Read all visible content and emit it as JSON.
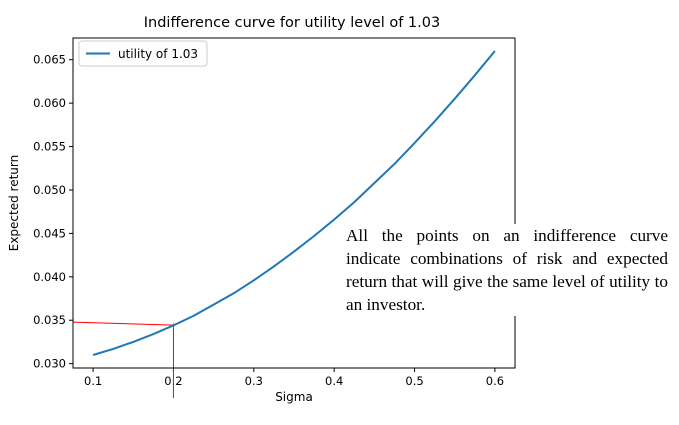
{
  "chart_data": {
    "type": "line",
    "title": "Indifference curve for utility level of 1.03",
    "xlabel": "Sigma",
    "ylabel": "Expected return",
    "xlim": [
      0.075,
      0.625
    ],
    "ylim": [
      0.0295,
      0.0675
    ],
    "xticks": [
      "0.1",
      "0.2",
      "0.3",
      "0.4",
      "0.5",
      "0.6"
    ],
    "yticks": [
      "0.030",
      "0.035",
      "0.040",
      "0.045",
      "0.050",
      "0.055",
      "0.060",
      "0.065"
    ],
    "grid": false,
    "legend_position": "top-left",
    "series": [
      {
        "name": "utility of 1.03",
        "color": "#1f77b4",
        "x": [
          0.1,
          0.125,
          0.15,
          0.175,
          0.2,
          0.225,
          0.25,
          0.275,
          0.3,
          0.325,
          0.35,
          0.375,
          0.4,
          0.425,
          0.45,
          0.475,
          0.5,
          0.525,
          0.55,
          0.575,
          0.6
        ],
        "y": [
          0.031,
          0.0317,
          0.0325,
          0.0334,
          0.0344,
          0.0355,
          0.0368,
          0.0381,
          0.0396,
          0.0412,
          0.0429,
          0.0447,
          0.0466,
          0.0486,
          0.0508,
          0.053,
          0.0554,
          0.0579,
          0.0605,
          0.0632,
          0.066
        ]
      }
    ],
    "highlight": {
      "x": 0.2,
      "y": 0.0345,
      "color": "#ff0000"
    }
  },
  "annotation": {
    "text": "All the points on an indifference curve indicate combinations of risk and expected return that will give the same level of utility to an investor."
  }
}
